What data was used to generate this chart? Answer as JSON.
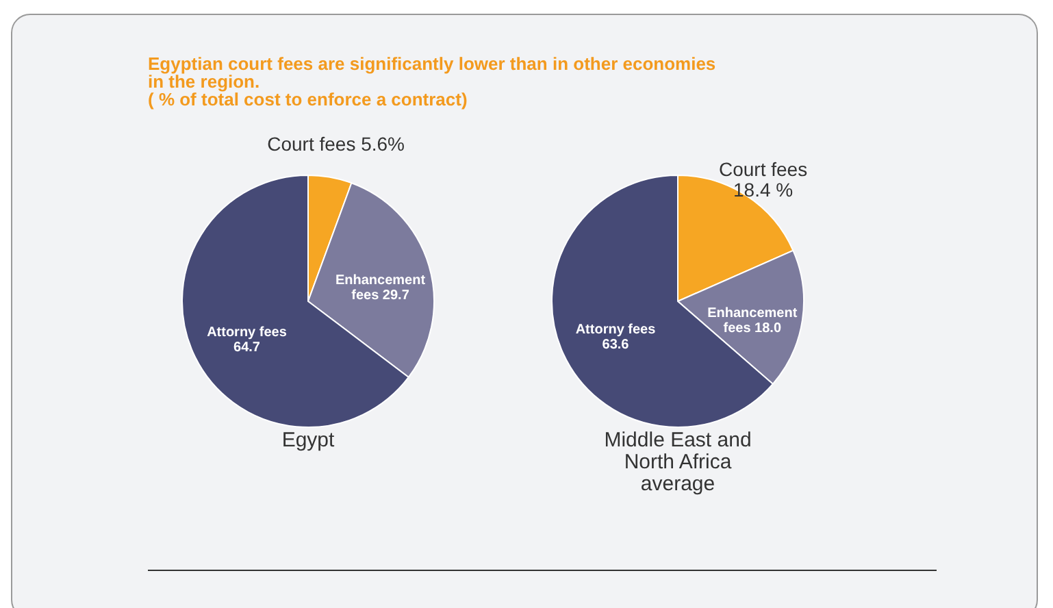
{
  "chart_data": [
    {
      "type": "pie",
      "title": "Egyptian court fees are significantly lower than in other economies in the region.",
      "subtitle": "( % of total cost to enforce a contract)",
      "xlabel": "Egypt",
      "categories": [
        "Court fees",
        "Enhancement fees",
        "Attorny fees"
      ],
      "values": [
        5.6,
        29.7,
        64.7
      ],
      "value_labels": [
        "5.6%",
        "29.7",
        "64.7"
      ],
      "colors": [
        "#f6a623",
        "#7c7b9d",
        "#464a76"
      ]
    },
    {
      "type": "pie",
      "xlabel": "Middle East and North Africa average",
      "categories": [
        "Court fees",
        "Enhancement fees",
        "Attorny fees"
      ],
      "values": [
        18.4,
        18.0,
        63.6
      ],
      "value_labels": [
        "18.4 %",
        "18.0",
        "63.6"
      ],
      "colors": [
        "#f6a623",
        "#7c7b9d",
        "#464a76"
      ]
    }
  ]
}
